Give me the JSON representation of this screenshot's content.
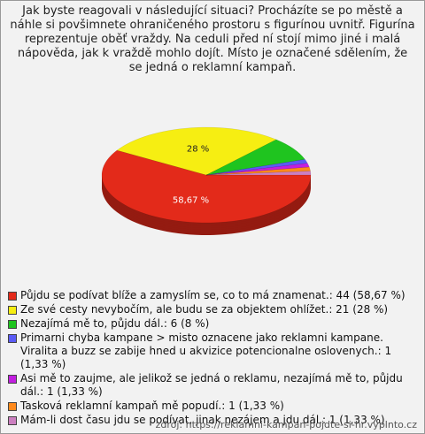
{
  "chart_data": {
    "type": "pie",
    "title": "Jak byste reagovali v následující situaci? Procházíte se po městě a náhle si povšimnete ohraničeného prostoru s figurínou uvnitř. Figurína reprezentuje oběť vraždy. Na ceduli před ní stojí mimo jiné i malá nápověda, jak k vraždě mohlo dojít. Místo je označené sdělením, že se jedná o reklamní kampaň.",
    "categories": [
      "Půjdu se podívat blíže a zamyslím se, co to má znamenat.: 44 (58,67 %)",
      "Ze své cesty nevybočím, ale budu se za objektem ohlížet.: 21 (28 %)",
      "Nezajímá mě to, půjdu dál.: 6 (8 %)",
      "Primarni chyba kampane > misto oznacene jako reklamni kampane. Viralita a buzz se zabije hned u akvizice potencionalne oslovenych.: 1 (1,33 %)",
      "Asi mě to zaujme, ale jelikož se jedná o reklamu, nezajímá mě to, půjdu dál.: 1 (1,33 %)",
      "Tasková reklamní kampaň mě popudí.: 1 (1,33 %)",
      "Mám-li dost času  jdu se podívat,  jinak  nezájem a jdu dál.: 1 (1,33 %)"
    ],
    "values": [
      58.67,
      28,
      8,
      1.33,
      1.33,
      1.33,
      1.33
    ],
    "value_labels": [
      "58,67 %",
      "28 %",
      null,
      null,
      null,
      null,
      null
    ],
    "colors": [
      "#e32a1a",
      "#f6ee12",
      "#1fc41f",
      "#5b5bf5",
      "#c21fe0",
      "#ff8a1c",
      "#cc7fc0"
    ],
    "source": "zdroj: https://reklamni-kampan-pojdte-si-hr.vyplnto.cz"
  }
}
